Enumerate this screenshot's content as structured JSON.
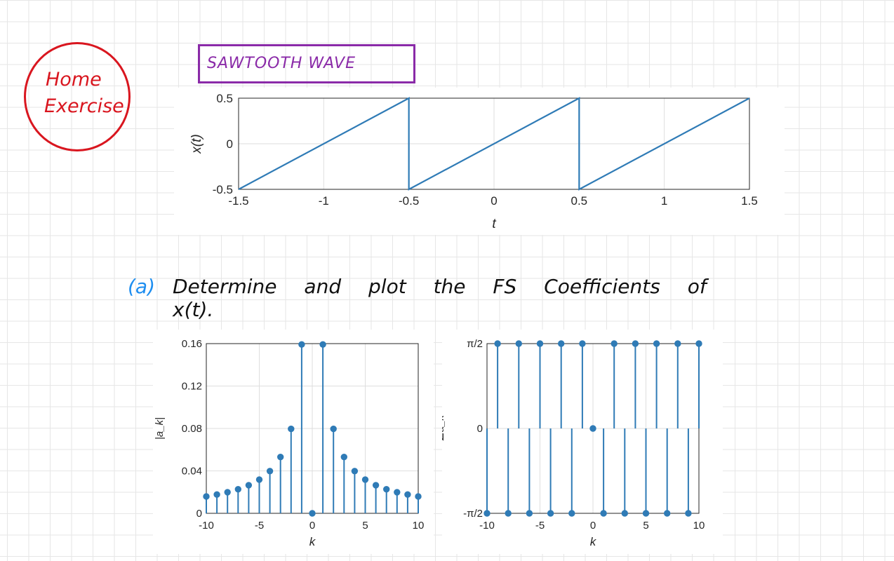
{
  "badge": {
    "line1": "Home",
    "line2": "Exercise"
  },
  "title": "SAWTOOTH WAVE",
  "question": {
    "label": "(a)",
    "text": "Determine and plot the FS Coefficients of x(t)."
  },
  "chart_data": [
    {
      "type": "line",
      "xlabel": "t",
      "ylabel": "x(t)",
      "xlim": [
        -1.5,
        1.5
      ],
      "ylim": [
        -0.5,
        0.5
      ],
      "x_ticks": [
        "-1.5",
        "-1",
        "-0.5",
        "0",
        "0.5",
        "1",
        "1.5"
      ],
      "y_ticks": [
        "-0.5",
        "0",
        "0.5"
      ],
      "grid": true,
      "color": "#2f7bb6",
      "series": [
        {
          "x": [
            -1.5,
            -0.5,
            -0.5,
            0.5,
            0.5,
            1.5
          ],
          "y": [
            -0.5,
            0.5,
            -0.5,
            0.5,
            -0.5,
            0.5
          ]
        }
      ]
    },
    {
      "type": "stem",
      "xlabel": "k",
      "ylabel": "|a_k|",
      "xlim": [
        -10,
        10
      ],
      "ylim": [
        0,
        0.16
      ],
      "x_ticks": [
        "-10",
        "-5",
        "0",
        "5",
        "10"
      ],
      "y_ticks": [
        "0",
        "0.04",
        "0.08",
        "0.12",
        "0.16"
      ],
      "grid": true,
      "color": "#2f7bb6",
      "k": [
        -10,
        -9,
        -8,
        -7,
        -6,
        -5,
        -4,
        -3,
        -2,
        -1,
        0,
        1,
        2,
        3,
        4,
        5,
        6,
        7,
        8,
        9,
        10
      ],
      "values": [
        0.0159,
        0.0177,
        0.0199,
        0.0227,
        0.0265,
        0.0318,
        0.0398,
        0.0531,
        0.0796,
        0.1592,
        0,
        0.1592,
        0.0796,
        0.0531,
        0.0398,
        0.0318,
        0.0265,
        0.0227,
        0.0199,
        0.0177,
        0.0159
      ]
    },
    {
      "type": "stem",
      "xlabel": "k",
      "ylabel": "∠a_k",
      "xlim": [
        -10,
        10
      ],
      "ylim": [
        -1.5708,
        1.5708
      ],
      "x_ticks": [
        "-10",
        "-5",
        "0",
        "5",
        "10"
      ],
      "y_ticks": [
        "-π/2",
        "0",
        "π/2"
      ],
      "grid": true,
      "color": "#2f7bb6",
      "k": [
        -10,
        -9,
        -8,
        -7,
        -6,
        -5,
        -4,
        -3,
        -2,
        -1,
        0,
        1,
        2,
        3,
        4,
        5,
        6,
        7,
        8,
        9,
        10
      ],
      "values": [
        -1.5708,
        1.5708,
        -1.5708,
        1.5708,
        -1.5708,
        1.5708,
        -1.5708,
        1.5708,
        -1.5708,
        1.5708,
        0,
        -1.5708,
        1.5708,
        -1.5708,
        1.5708,
        -1.5708,
        1.5708,
        -1.5708,
        1.5708,
        -1.5708,
        1.5708
      ]
    }
  ]
}
